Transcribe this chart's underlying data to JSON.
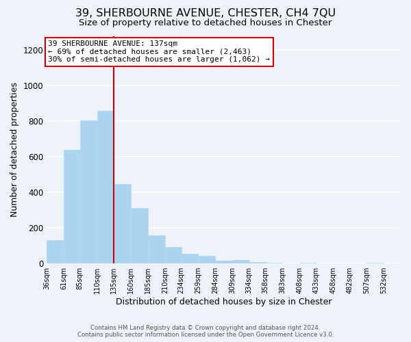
{
  "title": "39, SHERBOURNE AVENUE, CHESTER, CH4 7QU",
  "subtitle": "Size of property relative to detached houses in Chester",
  "xlabel": "Distribution of detached houses by size in Chester",
  "ylabel": "Number of detached properties",
  "footer_line1": "Contains HM Land Registry data © Crown copyright and database right 2024.",
  "footer_line2": "Contains public sector information licensed under the Open Government Licence v3.0.",
  "annotation_line1": "39 SHERBOURNE AVENUE: 137sqm",
  "annotation_line2": "← 69% of detached houses are smaller (2,463)",
  "annotation_line3": "30% of semi-detached houses are larger (1,062) →",
  "bar_left_edges": [
    36,
    61,
    85,
    110,
    135,
    160,
    185,
    210,
    234,
    259,
    284,
    309,
    334,
    358,
    383,
    408,
    433,
    458,
    482,
    507
  ],
  "bar_heights": [
    130,
    640,
    805,
    860,
    445,
    310,
    155,
    90,
    52,
    42,
    15,
    18,
    5,
    2,
    0,
    2,
    0,
    0,
    0,
    2
  ],
  "bar_widths": [
    25,
    24,
    25,
    25,
    25,
    25,
    25,
    24,
    25,
    25,
    25,
    25,
    24,
    25,
    25,
    25,
    25,
    24,
    25,
    25
  ],
  "bar_color": "#aad4f0",
  "bar_edge_color": "#b8d8ee",
  "marker_x": 135,
  "marker_color": "#cc0000",
  "xlim_left": 36,
  "xlim_right": 557,
  "ylim_bottom": 0,
  "ylim_top": 1280,
  "yticks": [
    0,
    200,
    400,
    600,
    800,
    1000,
    1200
  ],
  "xtick_labels": [
    "36sqm",
    "61sqm",
    "85sqm",
    "110sqm",
    "135sqm",
    "160sqm",
    "185sqm",
    "210sqm",
    "234sqm",
    "259sqm",
    "284sqm",
    "309sqm",
    "334sqm",
    "358sqm",
    "383sqm",
    "408sqm",
    "433sqm",
    "458sqm",
    "482sqm",
    "507sqm",
    "532sqm"
  ],
  "xtick_positions": [
    36,
    61,
    85,
    110,
    135,
    160,
    185,
    210,
    234,
    259,
    284,
    309,
    334,
    358,
    383,
    408,
    433,
    458,
    482,
    507,
    532
  ],
  "background_color": "#eef2f9",
  "plot_bg_color": "#eef2f9",
  "grid_color": "#ffffff",
  "title_fontsize": 11.5,
  "subtitle_fontsize": 9.5,
  "annotation_box_edge_color": "#cc0000",
  "annotation_box_fill": "#ffffff"
}
